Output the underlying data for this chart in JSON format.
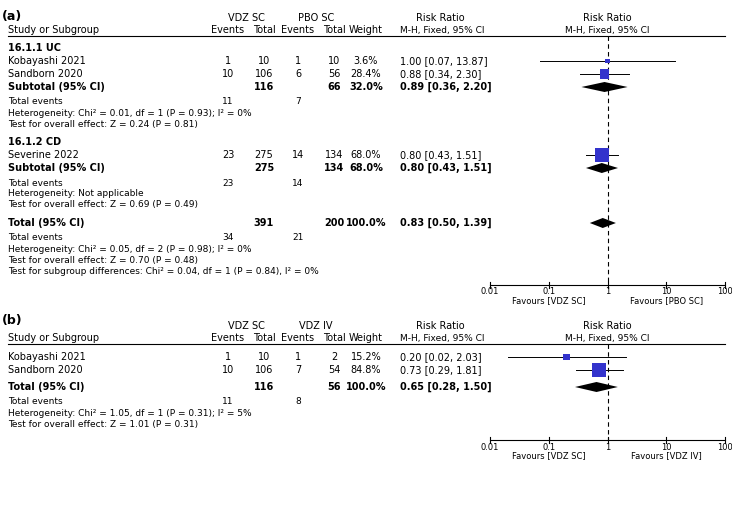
{
  "panel_a": {
    "col1_title": "VDZ SC",
    "col2_title": "PBO SC",
    "subgroup1_label": "16.1.1 UC",
    "subgroup1_studies": [
      {
        "name": "Kobayashi 2021",
        "e1": 1,
        "n1": 10,
        "e2": 1,
        "n2": 10,
        "weight": "3.6%",
        "rr_text": "1.00 [0.07, 13.87]",
        "rr": 1.0,
        "ci_lo": 0.07,
        "ci_hi": 13.87
      },
      {
        "name": "Sandborn 2020",
        "e1": 10,
        "n1": 106,
        "e2": 6,
        "n2": 56,
        "weight": "28.4%",
        "rr_text": "0.88 [0.34, 2.30]",
        "rr": 0.88,
        "ci_lo": 0.34,
        "ci_hi": 2.3
      }
    ],
    "subgroup1_subtotal": {
      "label": "Subtotal (95% CI)",
      "n1": 116,
      "n2": 66,
      "weight": "32.0%",
      "rr_text": "0.89 [0.36, 2.20]",
      "rr": 0.89,
      "ci_lo": 0.36,
      "ci_hi": 2.2
    },
    "subgroup1_total_events": {
      "e1": 11,
      "e2": 7
    },
    "subgroup1_het": "Heterogeneity: Chi² = 0.01, df = 1 (P = 0.93); I² = 0%",
    "subgroup1_test": "Test for overall effect: Z = 0.24 (P = 0.81)",
    "subgroup2_label": "16.1.2 CD",
    "subgroup2_studies": [
      {
        "name": "Severine 2022",
        "e1": 23,
        "n1": 275,
        "e2": 14,
        "n2": 134,
        "weight": "68.0%",
        "rr_text": "0.80 [0.43, 1.51]",
        "rr": 0.8,
        "ci_lo": 0.43,
        "ci_hi": 1.51
      }
    ],
    "subgroup2_subtotal": {
      "label": "Subtotal (95% CI)",
      "n1": 275,
      "n2": 134,
      "weight": "68.0%",
      "rr_text": "0.80 [0.43, 1.51]",
      "rr": 0.8,
      "ci_lo": 0.43,
      "ci_hi": 1.51
    },
    "subgroup2_total_events": {
      "e1": 23,
      "e2": 14
    },
    "subgroup2_het": "Heterogeneity: Not applicable",
    "subgroup2_test": "Test for overall effect: Z = 0.69 (P = 0.49)",
    "total": {
      "label": "Total (95% CI)",
      "n1": 391,
      "n2": 200,
      "weight": "100.0%",
      "rr_text": "0.83 [0.50, 1.39]",
      "rr": 0.83,
      "ci_lo": 0.5,
      "ci_hi": 1.39
    },
    "total_events": {
      "e1": 34,
      "e2": 21
    },
    "total_het": "Heterogeneity: Chi² = 0.05, df = 2 (P = 0.98); I² = 0%",
    "total_test": "Test for overall effect: Z = 0.70 (P = 0.48)",
    "subgroup_diff": "Test for subgroup differences: Chi² = 0.04, df = 1 (P = 0.84), I² = 0%",
    "x_label_left": "Favours [VDZ SC]",
    "x_label_right": "Favours [PBO SC]"
  },
  "panel_b": {
    "col1_title": "VDZ SC",
    "col2_title": "VDZ IV",
    "studies": [
      {
        "name": "Kobayashi 2021",
        "e1": 1,
        "n1": 10,
        "e2": 1,
        "n2": 2,
        "weight": "15.2%",
        "rr_text": "0.20 [0.02, 2.03]",
        "rr": 0.2,
        "ci_lo": 0.02,
        "ci_hi": 2.03
      },
      {
        "name": "Sandborn 2020",
        "e1": 10,
        "n1": 106,
        "e2": 7,
        "n2": 54,
        "weight": "84.8%",
        "rr_text": "0.73 [0.29, 1.81]",
        "rr": 0.73,
        "ci_lo": 0.29,
        "ci_hi": 1.81
      }
    ],
    "total": {
      "label": "Total (95% CI)",
      "n1": 116,
      "n2": 56,
      "weight": "100.0%",
      "rr_text": "0.65 [0.28, 1.50]",
      "rr": 0.65,
      "ci_lo": 0.28,
      "ci_hi": 1.5
    },
    "total_events": {
      "e1": 11,
      "e2": 8
    },
    "total_het": "Heterogeneity: Chi² = 1.05, df = 1 (P = 0.31); I² = 5%",
    "total_test": "Test for overall effect: Z = 1.01 (P = 0.31)",
    "x_label_left": "Favours [VDZ SC]",
    "x_label_right": "Favours [VDZ IV]"
  },
  "square_color": "#3333cc",
  "text_color": "#000000",
  "bg_color": "#ffffff"
}
